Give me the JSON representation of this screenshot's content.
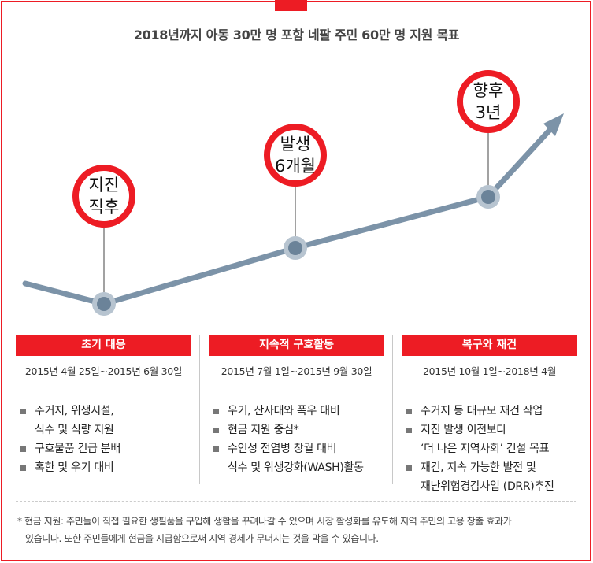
{
  "header": {
    "title": "2018년까지 아동 30만 명 포함 네팔 주민 60만 명 지원 목표"
  },
  "milestones": [
    {
      "label_line1": "지진",
      "label_line2": "직후"
    },
    {
      "label_line1": "발생",
      "label_line2": "6개월"
    },
    {
      "label_line1": "향후",
      "label_line2": "3년"
    }
  ],
  "phases": [
    {
      "title": "초기 대응",
      "dates": "2015년 4월 25일~2015년 6월 30일",
      "items": [
        {
          "line1": "주거지, 위생시설,",
          "line2": "식수 및 식량 지원"
        },
        {
          "line1": "구호물품 긴급 분배",
          "line2": ""
        },
        {
          "line1": "혹한 및 우기 대비",
          "line2": ""
        }
      ]
    },
    {
      "title": "지속적 구호활동",
      "dates": "2015년 7월 1일~2015년 9월 30일",
      "items": [
        {
          "line1": "우기, 산사태와 폭우 대비",
          "line2": ""
        },
        {
          "line1": "현금 지원 중심*",
          "line2": ""
        },
        {
          "line1": "수인성 전염병 창궐 대비",
          "line2": "식수 및 위생강화(WASH)활동"
        }
      ]
    },
    {
      "title": "복구와 재건",
      "dates": "2015년 10월 1일~2018년 4월",
      "items": [
        {
          "line1": "주거지 등 대규모 재건 작업",
          "line2": ""
        },
        {
          "line1": "지진 발생 이전보다",
          "line2": "‘더 나은 지역사회’ 건설 목표"
        },
        {
          "line1": "재건, 지속 가능한 발전 및",
          "line2": "재난위험경감사업 (DRR)추진"
        }
      ]
    }
  ],
  "footnote": {
    "line1": "* 현금 지원: 주민들이 직접 필요한 생필품을 구입해 생활을 꾸려나갈 수 있으며 시장 활성화를 유도해 지역 주민의 고용 창출 효과가",
    "line2": "있습니다. 또한 주민들에게 현금을 지급함으로써 지역 경제가 무너지는 것을 막을 수 있습니다."
  },
  "colors": {
    "accent_red": "#ed1c24",
    "line_blue_gray": "#7c93a8",
    "node_fill": "#6b8399"
  }
}
